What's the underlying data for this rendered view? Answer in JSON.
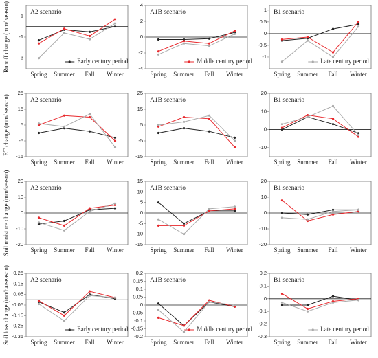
{
  "chart_data": [
    {
      "type": "line",
      "title": "A2 scenario",
      "ylabel": "Runoff change (mm/ season)",
      "categories": [
        "Spring",
        "Summer",
        "Fall",
        "Winter"
      ],
      "ylim": [
        -4,
        2
      ],
      "yticks": [
        1,
        -1,
        -3
      ],
      "series": [
        {
          "name": "Early century period",
          "color": "#222222",
          "values": [
            -1.3,
            -0.3,
            -0.5,
            0
          ]
        },
        {
          "color": "#e8282c",
          "values": [
            -1.6,
            -0.2,
            -0.9,
            0.7
          ]
        },
        {
          "color": "#aaaaaa",
          "values": [
            -3,
            -0.6,
            -1.2,
            0.3
          ]
        }
      ]
    },
    {
      "type": "line",
      "title": "A1B scenario",
      "categories": [
        "Spring",
        "Summer",
        "Fall",
        "Winter"
      ],
      "ylim": [
        -4,
        4
      ],
      "yticks": [
        4,
        2,
        0,
        -2,
        -4
      ],
      "series": [
        {
          "color": "#222222",
          "values": [
            -0.3,
            -0.3,
            -0.2,
            0.6
          ]
        },
        {
          "name": "Middle century period",
          "color": "#e8282c",
          "values": [
            -1.8,
            -0.5,
            -0.8,
            0.8
          ]
        },
        {
          "color": "#aaaaaa",
          "values": [
            -2.2,
            -0.8,
            -1.1,
            0.4
          ]
        }
      ]
    },
    {
      "type": "line",
      "title": "B1 scenario",
      "categories": [
        "Spring",
        "Summer",
        "Fall",
        "Winter"
      ],
      "ylim": [
        -1.5,
        1.2
      ],
      "yticks": [
        1,
        0.5,
        0,
        -0.5,
        -1
      ],
      "series": [
        {
          "color": "#222222",
          "values": [
            -0.3,
            -0.2,
            0.2,
            0.4
          ]
        },
        {
          "color": "#e8282c",
          "values": [
            -0.25,
            -0.15,
            -0.8,
            0.5
          ]
        },
        {
          "name": "Late century period",
          "color": "#aaaaaa",
          "values": [
            -1.2,
            -0.3,
            -1,
            0.3
          ]
        }
      ]
    },
    {
      "type": "line",
      "title": "A2 scenario",
      "ylabel": "ET change (mm/ season)",
      "categories": [
        "Spring",
        "Summer",
        "Fall",
        "Winter"
      ],
      "ylim": [
        -15,
        25
      ],
      "yticks": [
        25,
        15,
        5,
        -5,
        -15
      ],
      "series": [
        {
          "color": "#222222",
          "values": [
            0,
            3,
            1,
            -3
          ]
        },
        {
          "color": "#e8282c",
          "values": [
            5,
            11,
            10,
            -5
          ]
        },
        {
          "color": "#aaaaaa",
          "values": [
            6,
            4,
            12,
            -9
          ]
        }
      ]
    },
    {
      "type": "line",
      "title": "A1B scenario",
      "categories": [
        "Spring",
        "Summer",
        "Fall",
        "Winter"
      ],
      "ylim": [
        -15,
        25
      ],
      "yticks": [
        25,
        15,
        5,
        -5,
        -15
      ],
      "series": [
        {
          "color": "#222222",
          "values": [
            0,
            3,
            1,
            -3
          ]
        },
        {
          "color": "#e8282c",
          "values": [
            4,
            10,
            9,
            -9
          ]
        },
        {
          "color": "#aaaaaa",
          "values": [
            5,
            7,
            11,
            -5
          ]
        }
      ]
    },
    {
      "type": "line",
      "title": "B1 scenario",
      "categories": [
        "Spring",
        "Summer",
        "Fall",
        "Winter"
      ],
      "ylim": [
        -15,
        20
      ],
      "yticks": [
        20,
        10,
        0,
        -10
      ],
      "series": [
        {
          "color": "#222222",
          "values": [
            0,
            7,
            3,
            -2
          ]
        },
        {
          "color": "#e8282c",
          "values": [
            1,
            8,
            6,
            -4
          ]
        },
        {
          "color": "#aaaaaa",
          "values": [
            3,
            7,
            13,
            -3
          ]
        }
      ]
    },
    {
      "type": "line",
      "title": "A2 scenario",
      "ylabel": "Soil moisture change (mm/season)",
      "categories": [
        "Spring",
        "Summer",
        "Fall",
        "Winter"
      ],
      "ylim": [
        -20,
        20
      ],
      "yticks": [
        20,
        10,
        0,
        -10,
        -20
      ],
      "series": [
        {
          "color": "#222222",
          "values": [
            -7,
            -5,
            2,
            3
          ]
        },
        {
          "color": "#e8282c",
          "values": [
            -3,
            -8,
            3,
            5
          ]
        },
        {
          "color": "#aaaaaa",
          "values": [
            -6,
            -11,
            1,
            6
          ]
        }
      ]
    },
    {
      "type": "line",
      "title": "A1B scenario",
      "categories": [
        "Spring",
        "Summer",
        "Fall",
        "Winter"
      ],
      "ylim": [
        -15,
        15
      ],
      "yticks": [
        15,
        10,
        5,
        0,
        -5,
        -10,
        -15
      ],
      "series": [
        {
          "color": "#222222",
          "values": [
            5,
            -5,
            1,
            1
          ]
        },
        {
          "color": "#e8282c",
          "values": [
            -6,
            -6,
            1,
            2
          ]
        },
        {
          "color": "#aaaaaa",
          "values": [
            -3,
            -10,
            2,
            3
          ]
        }
      ]
    },
    {
      "type": "line",
      "title": "B1 scenario",
      "categories": [
        "Spring",
        "Summer",
        "Fall",
        "Winter"
      ],
      "ylim": [
        -20,
        20
      ],
      "yticks": [
        20,
        10,
        0,
        -10,
        -20
      ],
      "series": [
        {
          "color": "#222222",
          "values": [
            0,
            -1,
            2,
            2
          ]
        },
        {
          "color": "#e8282c",
          "values": [
            8,
            -5,
            -1,
            1
          ]
        },
        {
          "color": "#aaaaaa",
          "values": [
            -3,
            -4,
            1,
            2
          ]
        }
      ]
    },
    {
      "type": "line",
      "title": "A2 scenario",
      "ylabel": "Soil loss change (ton/ha/season)",
      "categories": [
        "Spring",
        "Summer",
        "Fall",
        "Winter"
      ],
      "ylim": [
        -0.35,
        0.25
      ],
      "yticks": [
        0.25,
        0.15,
        0.05,
        -0.05,
        -0.15,
        -0.25,
        -0.35
      ],
      "series": [
        {
          "name": "Early century period",
          "color": "#222222",
          "values": [
            -0.02,
            -0.12,
            0.05,
            0.01
          ]
        },
        {
          "color": "#e8282c",
          "values": [
            -0.01,
            -0.15,
            0.08,
            0.02
          ]
        },
        {
          "color": "#aaaaaa",
          "values": [
            -0.04,
            -0.2,
            0.04,
            0.02
          ]
        }
      ]
    },
    {
      "type": "line",
      "title": "A1B scenario",
      "categories": [
        "Spring",
        "Summer",
        "Fall",
        "Winter"
      ],
      "ylim": [
        -0.2,
        0.2
      ],
      "yticks": [
        0.2,
        0.15,
        0.1,
        0.05,
        0,
        -0.05,
        -0.1,
        -0.15,
        -0.2
      ],
      "series": [
        {
          "color": "#222222",
          "values": [
            0.01,
            -0.13,
            0.02,
            -0.01
          ]
        },
        {
          "name": "Middle century period",
          "color": "#e8282c",
          "values": [
            -0.08,
            -0.13,
            0.03,
            -0.01
          ]
        },
        {
          "color": "#aaaaaa",
          "values": [
            -0.03,
            -0.17,
            0.02,
            0
          ]
        }
      ]
    },
    {
      "type": "line",
      "title": "B1 scenario",
      "categories": [
        "Spring",
        "Summer",
        "Fall",
        "Winter"
      ],
      "ylim": [
        -0.3,
        0.2
      ],
      "yticks": [
        0.2,
        0.1,
        0,
        -0.1,
        -0.2,
        -0.3
      ],
      "series": [
        {
          "color": "#222222",
          "values": [
            -0.05,
            -0.05,
            0.02,
            -0.01
          ]
        },
        {
          "color": "#e8282c",
          "values": [
            0.04,
            -0.08,
            -0.02,
            0
          ]
        },
        {
          "name": "Late century period",
          "color": "#aaaaaa",
          "values": [
            -0.03,
            -0.1,
            -0.03,
            -0.01
          ]
        }
      ]
    }
  ]
}
